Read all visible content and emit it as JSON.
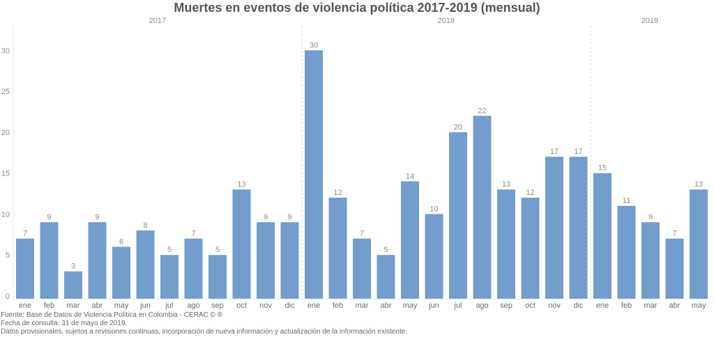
{
  "chart_data": {
    "type": "bar",
    "title": "Muertes en eventos de violencia política 2017-2019 (mensual)",
    "xlabel": "",
    "ylabel": "",
    "ylim": [
      0,
      33
    ],
    "yticks": [
      0,
      5,
      10,
      15,
      20,
      25,
      30
    ],
    "grid": false,
    "legend": "none",
    "bar_color": "#729DCD",
    "groups": [
      {
        "year": "2017",
        "categories": [
          "ene",
          "feb",
          "mar",
          "abr",
          "may",
          "jun",
          "jul",
          "ago",
          "sep",
          "oct",
          "nov",
          "dic"
        ],
        "values": [
          7,
          9,
          3,
          9,
          6,
          8,
          5,
          7,
          5,
          13,
          9,
          9
        ]
      },
      {
        "year": "2018",
        "categories": [
          "ene",
          "feb",
          "mar",
          "abr",
          "may",
          "jun",
          "jul",
          "ago",
          "sep",
          "oct",
          "nov",
          "dic"
        ],
        "values": [
          30,
          12,
          7,
          5,
          14,
          10,
          20,
          22,
          13,
          12,
          17,
          17
        ]
      },
      {
        "year": "2019",
        "categories": [
          "ene",
          "feb",
          "mar",
          "abr",
          "may"
        ],
        "values": [
          15,
          11,
          9,
          7,
          13
        ]
      }
    ]
  },
  "footnotes": [
    "Fuente: Base de Datos de Violencia Política en Colombia - CERAC © ®",
    "Fecha de consulta: 31 de mayo de 2019.",
    "Datos provisionales, sujetos a revisiones continuas, incorporación de nueva información y actualización de la información existente."
  ]
}
